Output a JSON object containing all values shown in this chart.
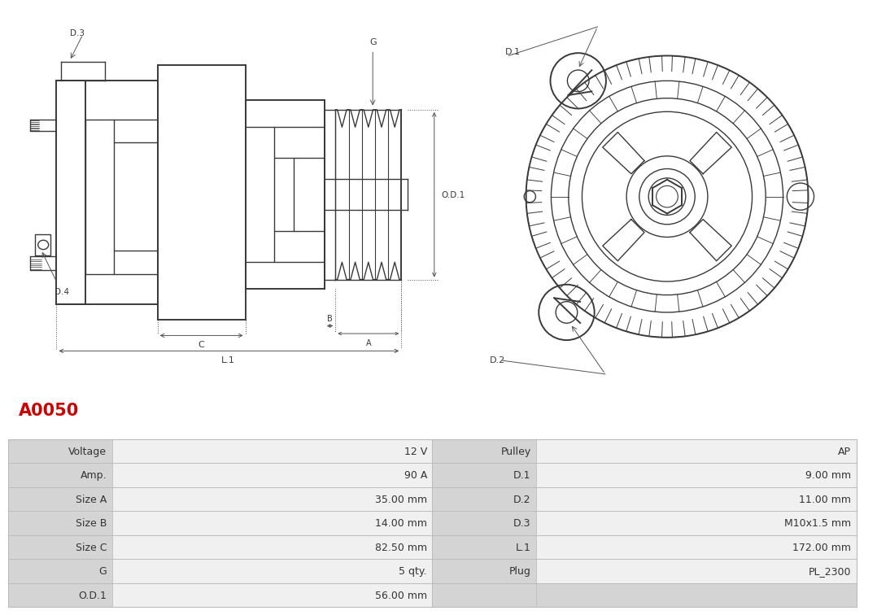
{
  "title": "A0050",
  "title_color": "#cc0000",
  "title_fontsize": 15,
  "bg_color": "#ffffff",
  "table_data": [
    [
      "Voltage",
      "12 V",
      "Pulley",
      "AP"
    ],
    [
      "Amp.",
      "90 A",
      "D.1",
      "9.00 mm"
    ],
    [
      "Size A",
      "35.00 mm",
      "D.2",
      "11.00 mm"
    ],
    [
      "Size B",
      "14.00 mm",
      "D.3",
      "M10x1.5 mm"
    ],
    [
      "Size C",
      "82.50 mm",
      "L.1",
      "172.00 mm"
    ],
    [
      "G",
      "5 qty.",
      "Plug",
      "PL_2300"
    ],
    [
      "O.D.1",
      "56.00 mm",
      "",
      ""
    ]
  ],
  "line_color": "#3a3a3a",
  "dim_color": "#555555",
  "label_bg": "#d4d4d4",
  "value_bg": "#f0f0f0",
  "empty_bg": "#d4d4d4",
  "border_color": "#bbbbbb",
  "font_color": "#333333",
  "font_size": 9,
  "lw": 1.0,
  "lw_thick": 1.4,
  "lw_dim": 0.7
}
